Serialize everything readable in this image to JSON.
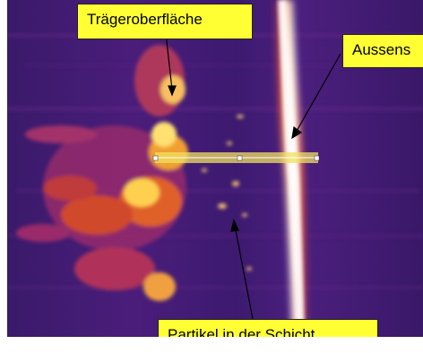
{
  "labels": {
    "surface": "Trägeroberfläche",
    "outer": "Aussens",
    "particles": "Partikel in der Schicht"
  },
  "colors": {
    "background": "#3f1b72",
    "label_fill": "#ffff33",
    "bright_band": "#fff8e0",
    "hot": "#ffcc33",
    "warm": "#e0402a"
  }
}
